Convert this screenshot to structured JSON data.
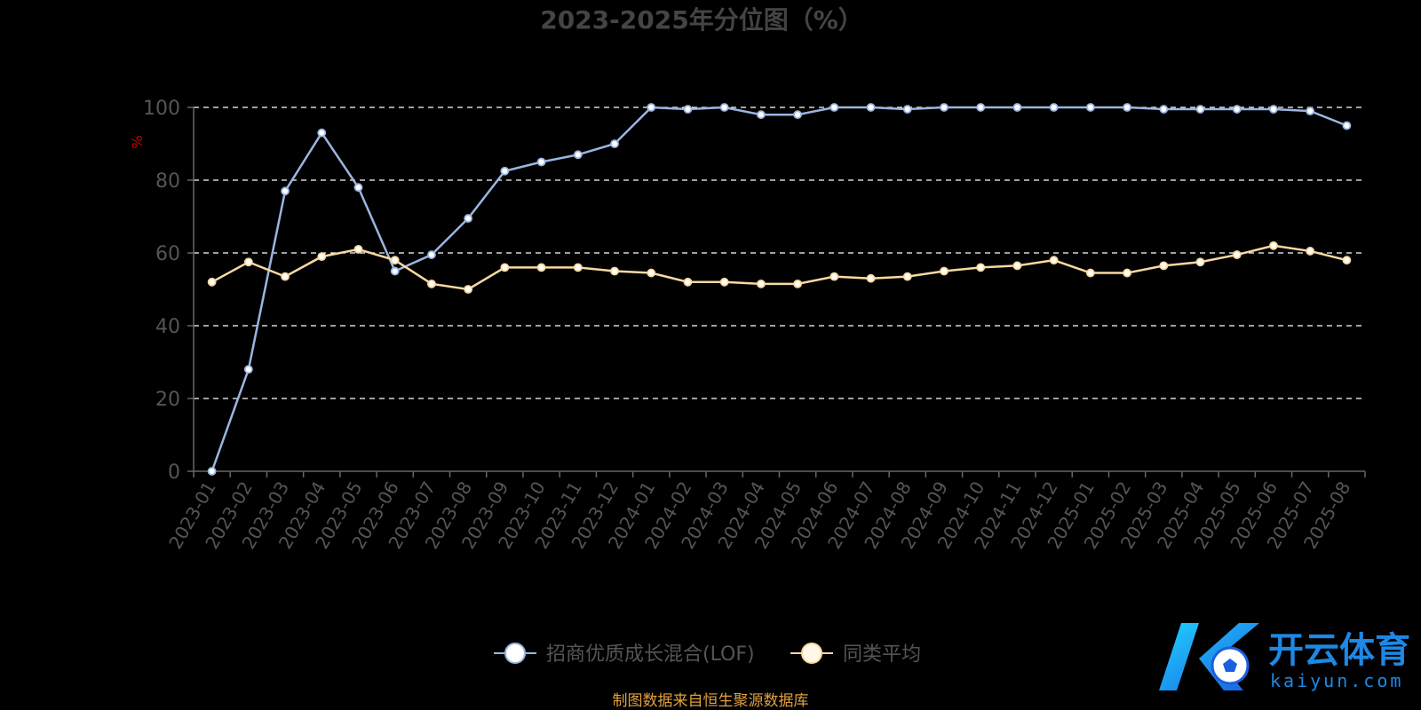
{
  "chart_data": {
    "type": "line",
    "title": "2023-2025年分位图（%）",
    "ylabel": "%",
    "ylim": [
      0,
      100
    ],
    "yticks": [
      0,
      20,
      40,
      60,
      80,
      100
    ],
    "grid": true,
    "legend_position": "bottom-center",
    "categories": [
      "2023-01",
      "2023-02",
      "2023-03",
      "2023-04",
      "2023-05",
      "2023-06",
      "2023-07",
      "2023-08",
      "2023-09",
      "2023-10",
      "2023-11",
      "2023-12",
      "2024-01",
      "2024-02",
      "2024-03",
      "2024-04",
      "2024-05",
      "2024-06",
      "2024-07",
      "2024-08",
      "2024-09",
      "2024-10",
      "2024-11",
      "2024-12",
      "2025-01",
      "2025-02",
      "2025-03",
      "2025-04",
      "2025-05",
      "2025-06",
      "2025-07",
      "2025-08"
    ],
    "series": [
      {
        "name": "招商优质成长混合(LOF)",
        "color": "#9bb5e0",
        "values": [
          0,
          28,
          77,
          93,
          78,
          55,
          59.5,
          69.5,
          82.5,
          85,
          87,
          90,
          100,
          99.5,
          100,
          98,
          98,
          100,
          100,
          99.5,
          100,
          100,
          100,
          100,
          100,
          100,
          99.5,
          99.5,
          99.5,
          99.5,
          99,
          95
        ]
      },
      {
        "name": "同类平均",
        "color": "#f9d9a0",
        "values": [
          52,
          57.5,
          53.5,
          59,
          61,
          58,
          51.5,
          50,
          56,
          56,
          56,
          55,
          54.5,
          52,
          52,
          51.5,
          51.5,
          53.5,
          53,
          53.5,
          55,
          56,
          56.5,
          58,
          54.5,
          54.5,
          56.5,
          57.5,
          59.5,
          62,
          60.5,
          58
        ]
      }
    ]
  },
  "footer": {
    "source": "制图数据来自恒生聚源数据库"
  },
  "watermark": {
    "brand_cn": "开云体育",
    "brand_en": "kaiyun.com"
  },
  "colors": {
    "axis_text": "#555555",
    "grid": "#ffffff",
    "ylabel": "#cc0000",
    "title": "#444444",
    "source": "#e0a040"
  }
}
